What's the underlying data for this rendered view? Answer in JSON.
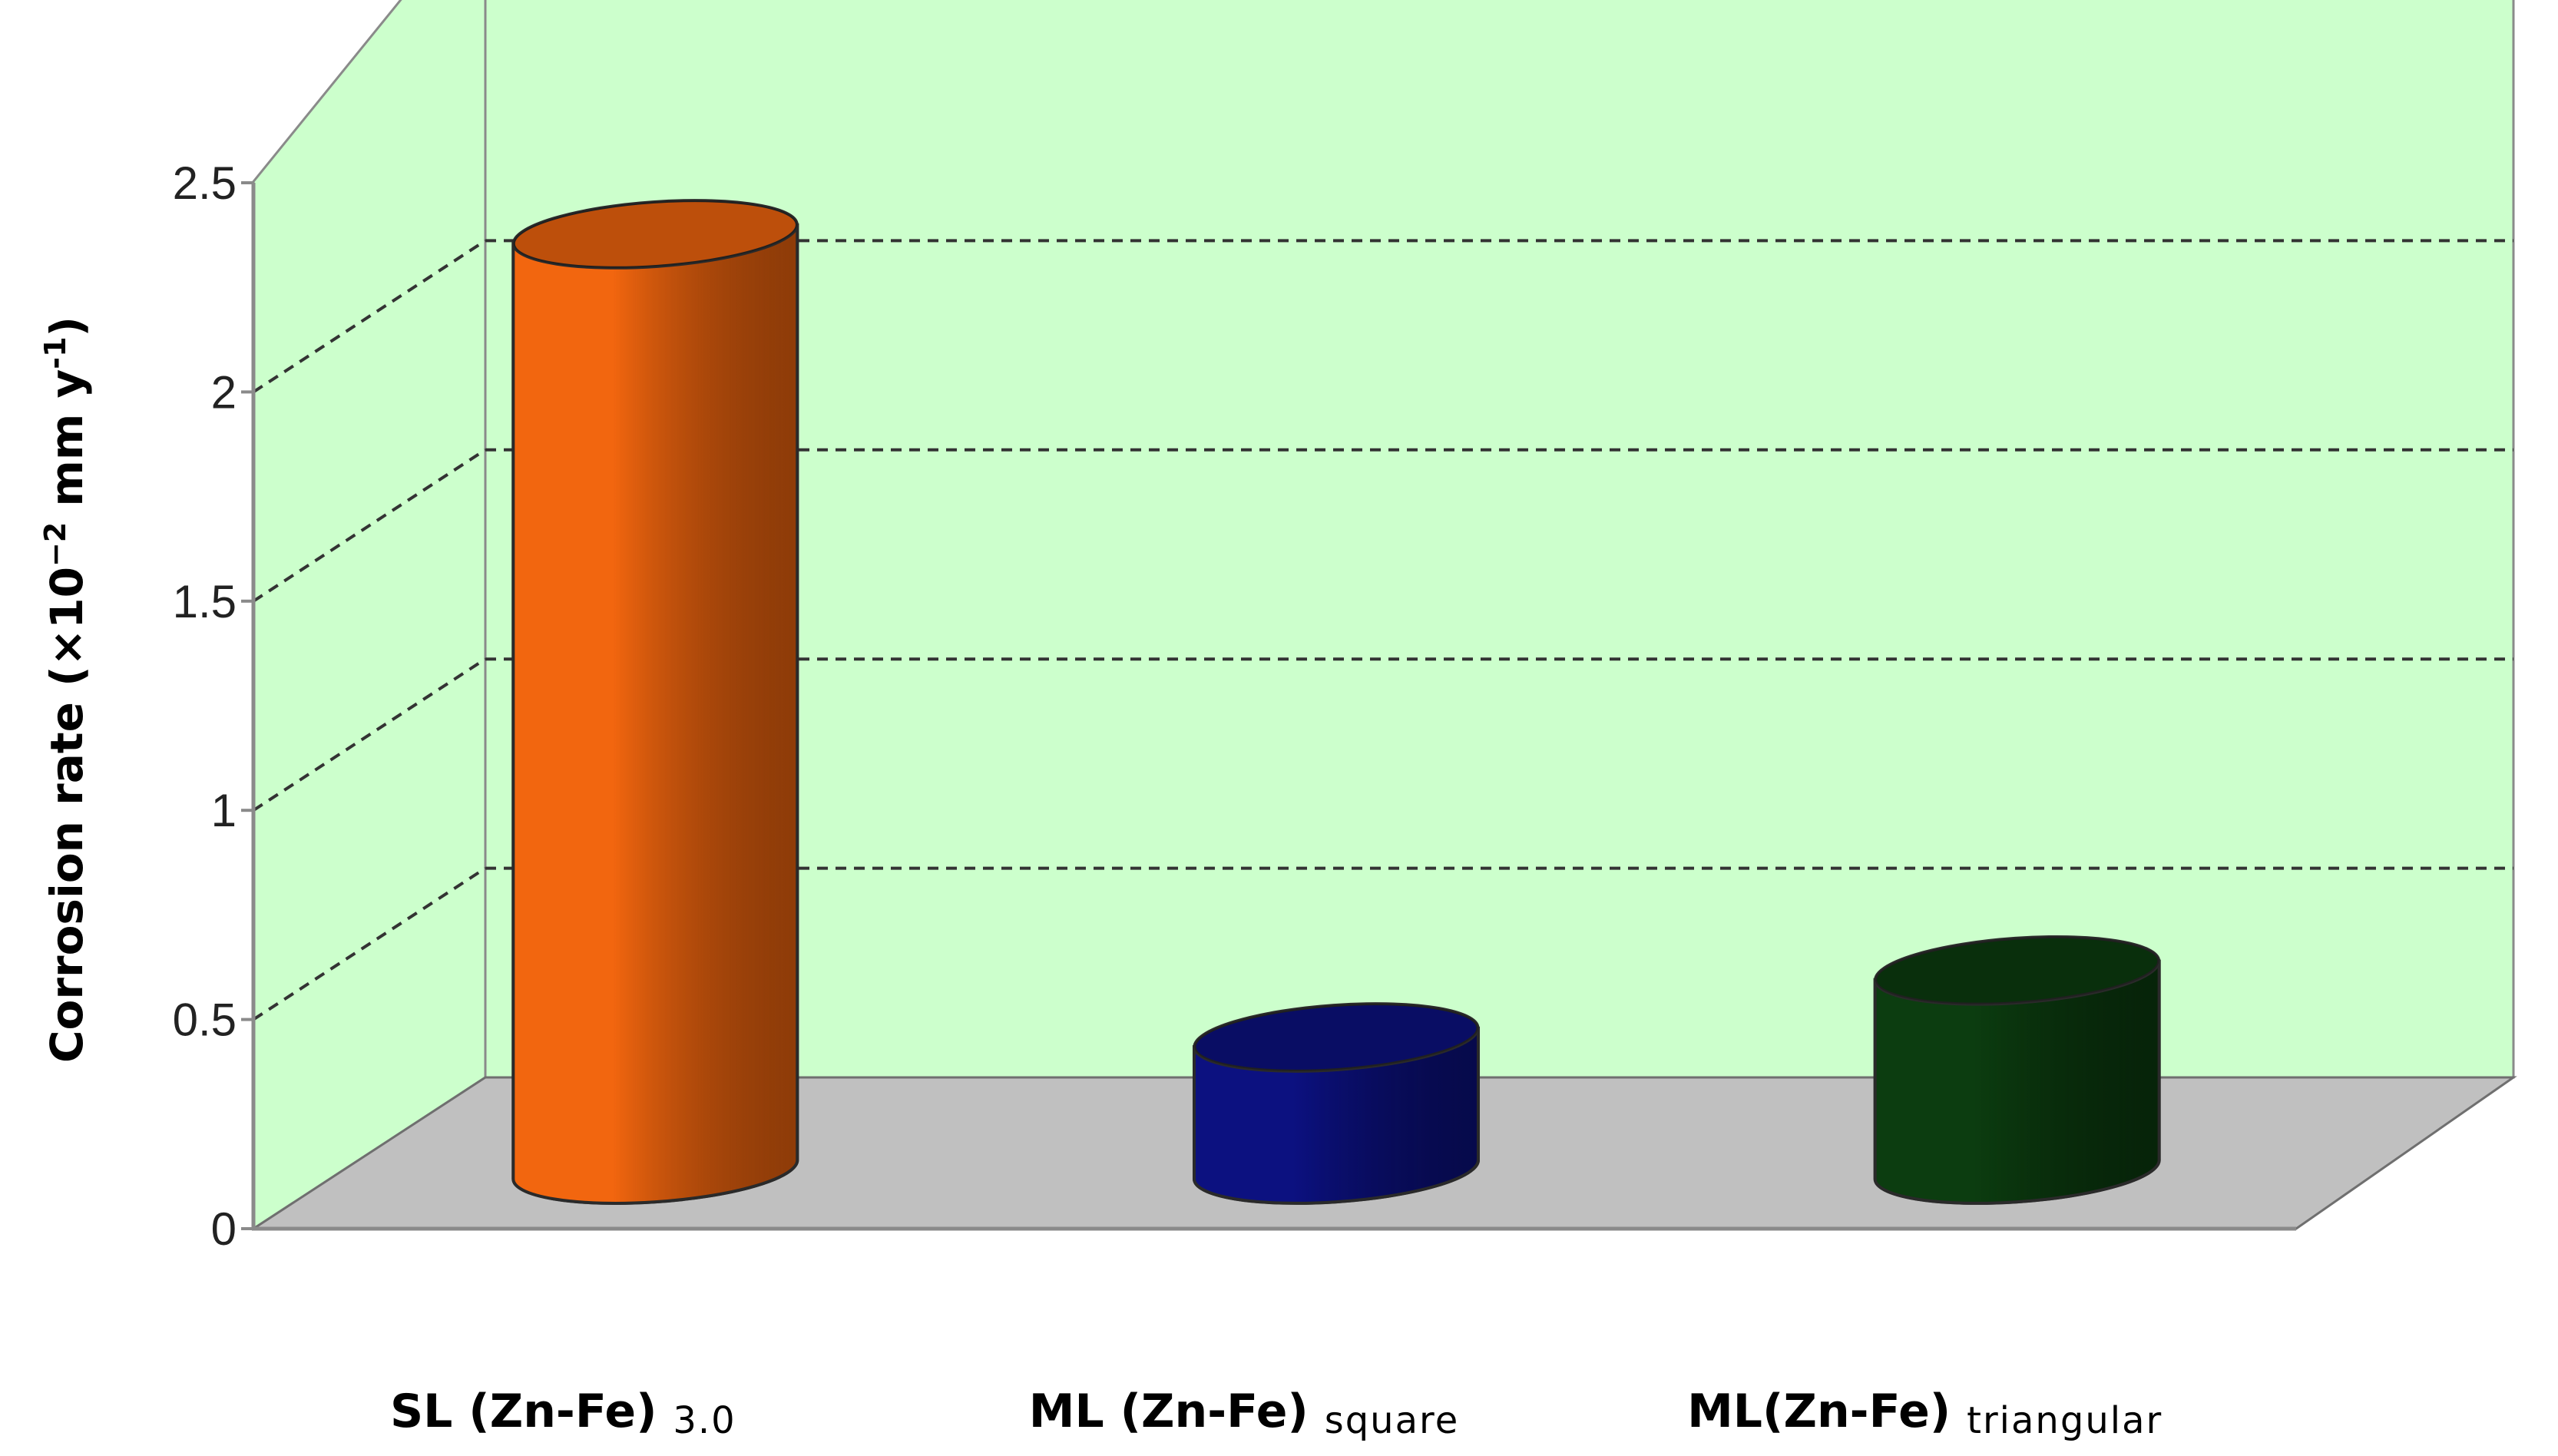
{
  "chart_data": {
    "type": "bar",
    "style": "3d-cylinder",
    "title": "",
    "xlabel": "",
    "ylabel": {
      "prefix": "Corrosion rate (×10",
      "exp1": "−2",
      "mid": " mm y",
      "exp2": "-1",
      "suffix": ")"
    },
    "ylim": [
      0,
      2.5
    ],
    "yticks": [
      "0",
      "0.5",
      "1",
      "1.5",
      "2",
      "2.5"
    ],
    "grid": true,
    "legend": "none",
    "categories": [
      {
        "main": "SL (Zn-Fe)",
        "sub": "3.0"
      },
      {
        "main": "ML (Zn-Fe)",
        "sub": "square"
      },
      {
        "main": "ML(Zn-Fe)",
        "sub": "triangular"
      }
    ],
    "values": [
      2.3,
      0.38,
      0.54
    ],
    "colors": {
      "bars": [
        "#f2660f",
        "#0c1180",
        "#0c3d10"
      ],
      "back_wall": "#ccffcc",
      "floor": "#c0c0c0"
    }
  }
}
